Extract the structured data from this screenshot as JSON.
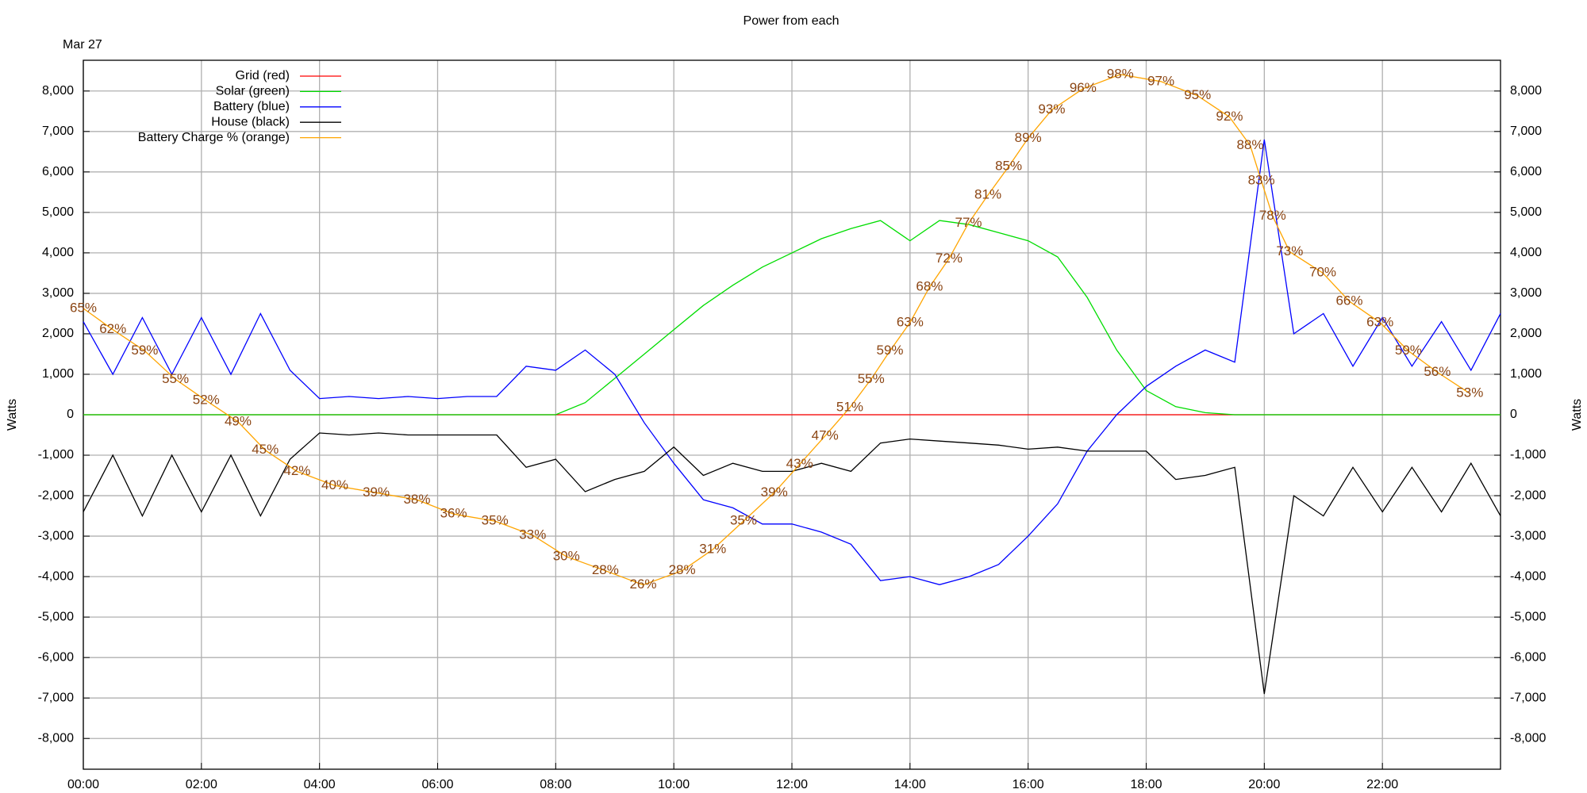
{
  "chart_data": {
    "type": "line",
    "title": "Power from each",
    "subtitle": "Mar 27",
    "ylabel": "Watts",
    "y2label": "Watts",
    "grid": true,
    "legend": "upper left",
    "xlim": [
      0,
      24
    ],
    "xticks": [
      {
        "value": 0,
        "label": "00:00"
      },
      {
        "value": 2,
        "label": "02:00"
      },
      {
        "value": 4,
        "label": "04:00"
      },
      {
        "value": 6,
        "label": "06:00"
      },
      {
        "value": 8,
        "label": "08:00"
      },
      {
        "value": 10,
        "label": "10:00"
      },
      {
        "value": 12,
        "label": "12:00"
      },
      {
        "value": 14,
        "label": "14:00"
      },
      {
        "value": 16,
        "label": "16:00"
      },
      {
        "value": 18,
        "label": "18:00"
      },
      {
        "value": 20,
        "label": "20:00"
      },
      {
        "value": 22,
        "label": "22:00"
      }
    ],
    "ylim": [
      -8760,
      8760
    ],
    "yticks": [
      {
        "value": -8000,
        "label": "-8,000"
      },
      {
        "value": -7000,
        "label": "-7,000"
      },
      {
        "value": -6000,
        "label": "-6,000"
      },
      {
        "value": -5000,
        "label": "-5,000"
      },
      {
        "value": -4000,
        "label": "-4,000"
      },
      {
        "value": -3000,
        "label": "-3,000"
      },
      {
        "value": -2000,
        "label": "-2,000"
      },
      {
        "value": -1000,
        "label": "-1,000"
      },
      0,
      {
        "value": 1000,
        "label": "1,000"
      },
      {
        "value": 2000,
        "label": "2,000"
      },
      {
        "value": 3000,
        "label": "3,000"
      },
      {
        "value": 4000,
        "label": "4,000"
      },
      {
        "value": 5000,
        "label": "5,000"
      },
      {
        "value": 6000,
        "label": "6,000"
      },
      {
        "value": 7000,
        "label": "7,000"
      },
      {
        "value": 8000,
        "label": "8,000"
      }
    ],
    "y2lim": [
      0,
      100
    ],
    "x": [
      0,
      0.5,
      1,
      1.5,
      2,
      2.5,
      3,
      3.5,
      4,
      4.5,
      5,
      5.5,
      6,
      6.5,
      7,
      7.5,
      8,
      8.5,
      9,
      9.5,
      10,
      10.5,
      11,
      11.5,
      12,
      12.5,
      13,
      13.5,
      14,
      14.5,
      15,
      15.5,
      16,
      16.5,
      17,
      17.5,
      18,
      18.5,
      19,
      19.5,
      20,
      20.5,
      21,
      21.5,
      22,
      22.5,
      23,
      23.5,
      24
    ],
    "series": [
      {
        "name": "Grid (red)",
        "color": "#ff0000",
        "values": [
          0,
          0,
          0,
          0,
          0,
          0,
          0,
          0,
          0,
          0,
          0,
          0,
          0,
          0,
          0,
          0,
          0,
          0,
          0,
          0,
          0,
          0,
          0,
          0,
          0,
          0,
          0,
          0,
          0,
          0,
          0,
          0,
          0,
          0,
          0,
          0,
          0,
          0,
          0,
          0,
          0,
          0,
          0,
          0,
          0,
          0,
          0,
          0,
          0
        ]
      },
      {
        "name": "Solar (green)",
        "color": "#00dd00",
        "values": [
          0,
          0,
          0,
          0,
          0,
          0,
          0,
          0,
          0,
          0,
          0,
          0,
          0,
          0,
          0,
          0,
          0,
          300,
          900,
          1500,
          2100,
          2700,
          3200,
          3650,
          4000,
          4350,
          4600,
          4800,
          4300,
          4800,
          4700,
          4500,
          4300,
          3900,
          2900,
          1600,
          600,
          200,
          50,
          0,
          0,
          0,
          0,
          0,
          0,
          0,
          0,
          0,
          0
        ]
      },
      {
        "name": "Battery (blue)",
        "color": "#0000ff",
        "values": [
          2300,
          1000,
          2400,
          1000,
          2400,
          1000,
          2500,
          1100,
          400,
          450,
          400,
          450,
          400,
          450,
          450,
          1200,
          1100,
          1600,
          1000,
          -200,
          -1200,
          -2100,
          -2300,
          -2700,
          -2700,
          -2900,
          -3200,
          -4100,
          -4000,
          -4200,
          -4000,
          -3700,
          -3000,
          -2200,
          -900,
          0,
          700,
          1200,
          1600,
          1300,
          6800,
          2000,
          2500,
          1200,
          2400,
          1200,
          2300,
          1100,
          2500
        ]
      },
      {
        "name": "House (black)",
        "color": "#000000",
        "values": [
          -2400,
          -1000,
          -2500,
          -1000,
          -2400,
          -1000,
          -2500,
          -1100,
          -450,
          -500,
          -450,
          -500,
          -500,
          -500,
          -500,
          -1300,
          -1100,
          -1900,
          -1600,
          -1400,
          -800,
          -1500,
          -1200,
          -1400,
          -1400,
          -1200,
          -1400,
          -700,
          -600,
          -650,
          -700,
          -750,
          -850,
          -800,
          -900,
          -900,
          -900,
          -1600,
          -1500,
          -1300,
          -6900,
          -2000,
          -2500,
          -1300,
          -2400,
          -1300,
          -2400,
          -1200,
          -2500
        ]
      },
      {
        "name": "Battery Charge % (orange)",
        "color": "#ffa500",
        "axis": "y2",
        "x": [
          0,
          0.5,
          1.04,
          1.56,
          2.08,
          2.62,
          3.08,
          3.62,
          4.26,
          4.96,
          5.65,
          6.27,
          6.97,
          7.61,
          8.18,
          8.84,
          9.48,
          10.14,
          10.66,
          11.18,
          11.7,
          12.13,
          12.56,
          12.98,
          13.34,
          13.66,
          14,
          14.33,
          14.66,
          14.99,
          15.32,
          15.67,
          16,
          16.4,
          16.93,
          17.56,
          18.25,
          18.87,
          19.41,
          19.76,
          19.95,
          20.14,
          20.43,
          20.99,
          21.44,
          21.96,
          22.44,
          22.93,
          23.48
        ],
        "values": [
          65,
          62,
          59,
          55,
          52,
          49,
          45,
          42,
          40,
          39,
          38,
          36,
          35,
          33,
          30,
          28,
          26,
          28,
          31,
          35,
          39,
          43,
          47,
          51,
          55,
          59,
          63,
          68,
          72,
          77,
          81,
          85,
          89,
          93,
          96,
          98,
          97,
          95,
          92,
          88,
          83,
          78,
          73,
          70,
          66,
          63,
          59,
          56,
          53
        ],
        "value_labels": [
          "65%",
          "62%",
          "59%",
          "55%",
          "52%",
          "49%",
          "45%",
          "42%",
          "40%",
          "39%",
          "38%",
          "36%",
          "35%",
          "33%",
          "30%",
          "28%",
          "26%",
          "28%",
          "31%",
          "35%",
          "39%",
          "43%",
          "47%",
          "51%",
          "55%",
          "59%",
          "63%",
          "68%",
          "72%",
          "77%",
          "81%",
          "85%",
          "89%",
          "93%",
          "96%",
          "98%",
          "97%",
          "95%",
          "92%",
          "88%",
          "83%",
          "78%",
          "73%",
          "70%",
          "66%",
          "63%",
          "59%",
          "56%",
          "53%"
        ]
      }
    ]
  }
}
